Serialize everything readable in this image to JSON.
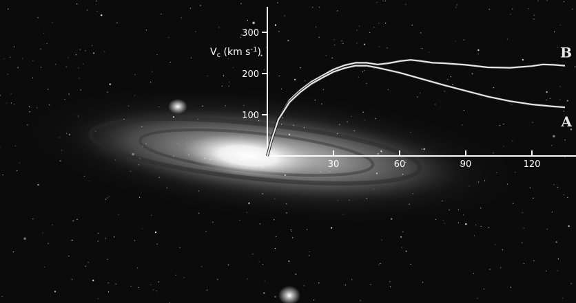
{
  "chart_data": {
    "type": "line",
    "title": "",
    "xlabel": "",
    "ylabel": {
      "main": "V",
      "sub": "c",
      "units": " (km s",
      "exp": "-1",
      "close": ")"
    },
    "xlim": [
      0,
      135
    ],
    "ylim": [
      0,
      350
    ],
    "x_ticks": [
      30,
      60,
      90,
      120
    ],
    "y_ticks": [
      100,
      200,
      300
    ],
    "grid": false,
    "background": "photograph of the Andromeda galaxy (M31) with companion galaxies",
    "axis_color": "#ffffff",
    "series": [
      {
        "name": "B",
        "color": "#e6e6e6",
        "x": [
          0,
          2,
          5,
          10,
          15,
          20,
          25,
          30,
          35,
          40,
          45,
          50,
          55,
          60,
          65,
          70,
          75,
          80,
          90,
          100,
          110,
          120,
          125,
          130,
          135
        ],
        "y": [
          0,
          40,
          90,
          135,
          160,
          180,
          195,
          210,
          220,
          226,
          226,
          222,
          225,
          230,
          233,
          230,
          226,
          225,
          221,
          215,
          214,
          218,
          222,
          221,
          219
        ]
      },
      {
        "name": "A",
        "color": "#e6e6e6",
        "x": [
          0,
          2,
          5,
          10,
          15,
          20,
          25,
          30,
          35,
          40,
          45,
          50,
          60,
          70,
          80,
          90,
          100,
          110,
          120,
          130,
          135
        ],
        "y": [
          0,
          40,
          88,
          130,
          155,
          175,
          190,
          204,
          213,
          219,
          219,
          214,
          202,
          187,
          172,
          158,
          144,
          133,
          125,
          120,
          118
        ]
      }
    ]
  }
}
